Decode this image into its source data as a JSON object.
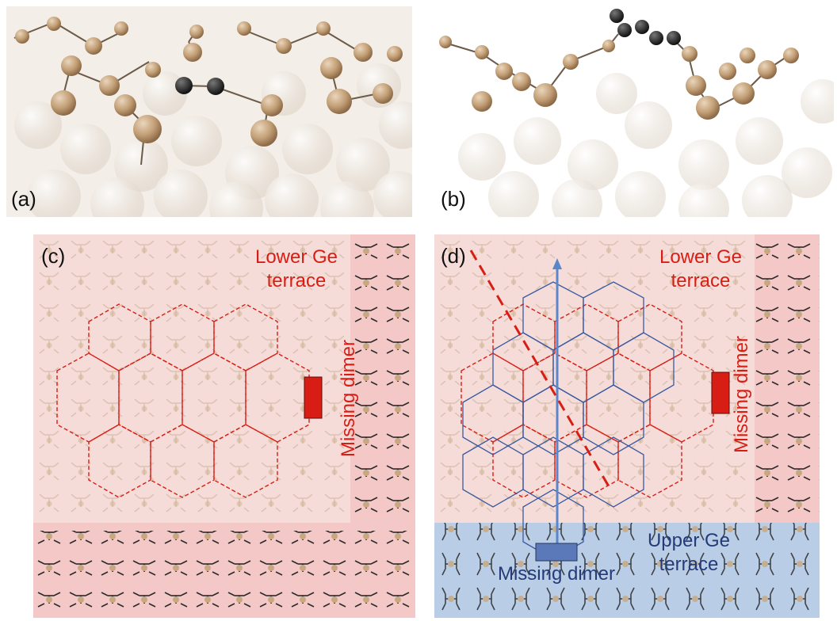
{
  "panels": {
    "a": {
      "label": "(a)"
    },
    "b": {
      "label": "(b)"
    },
    "c": {
      "label": "(c)",
      "lower_terrace": [
        "Lower Ge",
        "terrace"
      ],
      "missing_dimer": "Missing dimer"
    },
    "d": {
      "label": "(d)",
      "lower_terrace": [
        "Lower Ge",
        "terrace"
      ],
      "upper_terrace": [
        "Upper Ge",
        "terrace"
      ],
      "missing_dimer_vertical": "Missing dimer",
      "missing_dimer_bottom": "Missing dimer"
    }
  },
  "colors": {
    "lower_terrace_bg": "#f6dcd9",
    "lower_terrace_edge": "#f2c9c6",
    "upper_terrace_bg": "#b9cde6",
    "ge_atom": "#c7a882",
    "carbon_atom": "#333333",
    "red_accent": "#d81e14",
    "blue_lattice": "#3a5aa0",
    "label_blue": "#243b78"
  }
}
